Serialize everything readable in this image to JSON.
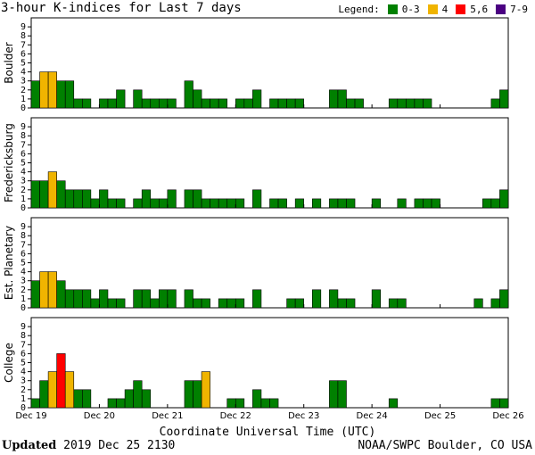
{
  "title": "3-hour K-indices for Last 7 days",
  "legend": {
    "title": "Legend:",
    "items": [
      {
        "label": "0-3",
        "color": "#008000"
      },
      {
        "label": "4",
        "color": "#f0b400"
      },
      {
        "label": "5,6",
        "color": "#ff0000"
      },
      {
        "label": "7-9",
        "color": "#4b0082"
      }
    ]
  },
  "chart_data": {
    "type": "bar",
    "xlabel": "Coordinate Universal Time (UTC)",
    "ylim": [
      0,
      9
    ],
    "y_ticks": [
      "0",
      "1",
      "2",
      "3",
      "4",
      "5",
      "6",
      "7",
      "8",
      "9"
    ],
    "x_ticks": [
      "Dec 19",
      "Dec 20",
      "Dec 21",
      "Dec 22",
      "Dec 23",
      "Dec 24",
      "Dec 25",
      "Dec 26"
    ],
    "intervals_per_day": 8,
    "grid": false,
    "series": [
      {
        "name": "Boulder",
        "values": [
          3,
          4,
          4,
          3,
          3,
          1,
          1,
          0,
          1,
          1,
          2,
          0,
          2,
          1,
          1,
          1,
          1,
          0,
          3,
          2,
          1,
          1,
          1,
          0,
          1,
          1,
          2,
          0,
          1,
          1,
          1,
          1,
          0,
          0,
          0,
          2,
          2,
          1,
          1,
          0,
          0,
          0,
          1,
          1,
          1,
          1,
          1,
          0,
          0,
          0,
          0,
          0,
          0,
          0,
          1,
          2
        ]
      },
      {
        "name": "Fredericksburg",
        "values": [
          3,
          3,
          4,
          3,
          2,
          2,
          2,
          1,
          2,
          1,
          1,
          0,
          1,
          2,
          1,
          1,
          2,
          0,
          2,
          2,
          1,
          1,
          1,
          1,
          1,
          0,
          2,
          0,
          1,
          1,
          0,
          1,
          0,
          1,
          0,
          1,
          1,
          1,
          0,
          0,
          1,
          0,
          0,
          1,
          0,
          1,
          1,
          1,
          0,
          0,
          0,
          0,
          0,
          1,
          1,
          2
        ]
      },
      {
        "name": "Est. Planetary",
        "values": [
          3,
          4,
          4,
          3,
          2,
          2,
          2,
          1,
          2,
          1,
          1,
          0,
          2,
          2,
          1,
          2,
          2,
          0,
          2,
          1,
          1,
          0,
          1,
          1,
          1,
          0,
          2,
          0,
          0,
          0,
          1,
          1,
          0,
          2,
          0,
          2,
          1,
          1,
          0,
          0,
          2,
          0,
          1,
          1,
          0,
          0,
          0,
          0,
          0,
          0,
          0,
          0,
          1,
          0,
          1,
          2
        ]
      },
      {
        "name": "College",
        "values": [
          1,
          3,
          4,
          6,
          4,
          2,
          2,
          0,
          0,
          1,
          1,
          2,
          3,
          2,
          0,
          0,
          0,
          0,
          3,
          3,
          4,
          0,
          0,
          1,
          1,
          0,
          2,
          1,
          1,
          0,
          0,
          0,
          0,
          0,
          0,
          3,
          3,
          0,
          0,
          0,
          0,
          0,
          1,
          0,
          0,
          0,
          0,
          0,
          0,
          0,
          0,
          0,
          0,
          0,
          1,
          1
        ]
      }
    ]
  },
  "footer": {
    "updated_label": "Updated",
    "updated_value": " 2019 Dec 25 2130",
    "credit": "NOAA/SWPC Boulder, CO USA"
  }
}
